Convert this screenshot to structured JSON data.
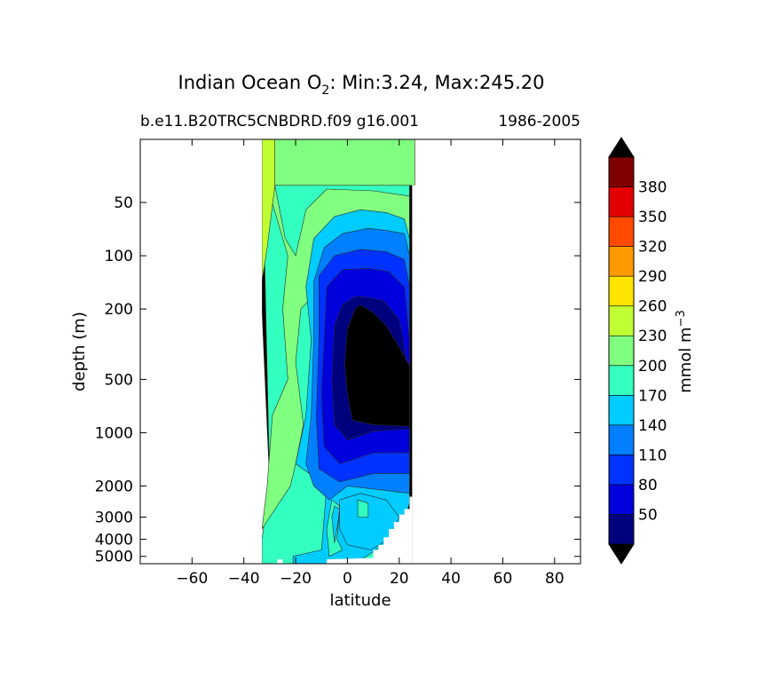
{
  "chart_data": {
    "type": "contour",
    "title_prefix": "Indian Ocean O",
    "title_subscript": "2",
    "title_suffix": ": Min:3.24, Max:245.20",
    "subtitle_left": "b.e11.B20TRC5CNBDRD.f09 g16.001",
    "subtitle_right": "1986-2005",
    "xlabel": "latitude",
    "ylabel": "depth (m)",
    "xlim": [
      -80,
      90
    ],
    "xticks": [
      -60,
      -40,
      -20,
      0,
      20,
      40,
      60,
      80
    ],
    "xtick_labels": [
      "−60",
      "−40",
      "−20",
      "0",
      "20",
      "40",
      "60",
      "80"
    ],
    "ylim": [
      5500,
      22
    ],
    "y_scale": "log",
    "yticks": [
      50,
      100,
      200,
      500,
      1000,
      2000,
      3000,
      4000,
      5000
    ],
    "ytick_labels": [
      "50",
      "100",
      "200",
      "500",
      "1000",
      "2000",
      "3000",
      "4000",
      "5000"
    ],
    "min": 3.24,
    "max": 245.2,
    "colorbar": {
      "label_base": "mmol m",
      "label_sup": "−3",
      "levels": [
        20,
        50,
        80,
        110,
        140,
        170,
        200,
        230,
        260,
        290,
        320,
        350,
        380,
        410
      ],
      "tick_labels": [
        "50",
        "80",
        "110",
        "140",
        "170",
        "200",
        "230",
        "260",
        "290",
        "320",
        "350",
        "380"
      ],
      "colors": [
        "#00007f",
        "#0000dd",
        "#0033ff",
        "#0080ff",
        "#00ccff",
        "#33ffc0",
        "#80ff80",
        "#c0ff33",
        "#ffe500",
        "#ff9900",
        "#ff4a00",
        "#e30000",
        "#800000"
      ],
      "extend_low_color": "#000000",
      "extend_high_color": "#000000"
    },
    "bands": [
      {
        "band": "extend_low",
        "polygon": [
          [
            -33,
            5500
          ],
          [
            -33,
            4000
          ],
          [
            -30,
            2000
          ],
          [
            -33,
            200
          ],
          [
            -33,
            22
          ],
          [
            25,
            22
          ],
          [
            25,
            5500
          ]
        ]
      },
      {
        "band": "170-200",
        "polygon": [
          [
            -33,
            5500
          ],
          [
            -33,
            4000
          ],
          [
            -30,
            2000
          ],
          [
            -33,
            22
          ],
          [
            24,
            22
          ],
          [
            24,
            1800
          ],
          [
            20,
            4800
          ],
          [
            8,
            5300
          ],
          [
            0,
            5500
          ]
        ]
      },
      {
        "band": "200-230",
        "polygon": [
          [
            -33,
            22
          ],
          [
            26,
            22
          ],
          [
            26,
            40
          ],
          [
            -33,
            40
          ]
        ]
      },
      {
        "band": "200-230",
        "polygon": [
          [
            -33,
            3500
          ],
          [
            -31,
            2000
          ],
          [
            -29,
            800
          ],
          [
            -23,
            500
          ],
          [
            -25,
            200
          ],
          [
            -23,
            100
          ],
          [
            -31,
            40
          ],
          [
            -33,
            22
          ],
          [
            -30,
            22
          ],
          [
            -28,
            40
          ],
          [
            -24,
            80
          ],
          [
            -20,
            100
          ],
          [
            -16,
            55
          ],
          [
            -8,
            42
          ],
          [
            10,
            43
          ],
          [
            24,
            46
          ],
          [
            24,
            100
          ],
          [
            -4,
            120
          ],
          [
            -18,
            200
          ],
          [
            -20,
            400
          ],
          [
            -17,
            900
          ],
          [
            -20,
            1500
          ],
          [
            -22,
            2000
          ],
          [
            -30,
            3000
          ]
        ]
      },
      {
        "band": "230-260",
        "polygon": [
          [
            -33,
            22
          ],
          [
            -28,
            22
          ],
          [
            -28,
            40
          ],
          [
            -31,
            90
          ],
          [
            -33,
            140
          ]
        ]
      },
      {
        "band": "140-170",
        "polygon": [
          [
            -21,
            5500
          ],
          [
            -21,
            5000
          ],
          [
            -10,
            4600
          ],
          [
            -9,
            3000
          ],
          [
            -8,
            2000
          ],
          [
            -20,
            1500
          ],
          [
            -16,
            800
          ],
          [
            -14,
            300
          ],
          [
            -16,
            150
          ],
          [
            -13,
            80
          ],
          [
            -5,
            60
          ],
          [
            5,
            55
          ],
          [
            15,
            57
          ],
          [
            22,
            62
          ],
          [
            24,
            80
          ],
          [
            24,
            2500
          ],
          [
            20,
            4000
          ],
          [
            12,
            4500
          ],
          [
            3,
            5500
          ]
        ]
      },
      {
        "band": "110-140",
        "polygon": [
          [
            -7,
            2400
          ],
          [
            -13,
            2000
          ],
          [
            -16,
            1500
          ],
          [
            -14,
            800
          ],
          [
            -13,
            300
          ],
          [
            -13,
            140
          ],
          [
            -9,
            90
          ],
          [
            -2,
            75
          ],
          [
            8,
            70
          ],
          [
            15,
            72
          ],
          [
            22,
            75
          ],
          [
            24,
            100
          ],
          [
            24,
            2200
          ],
          [
            0,
            2000
          ]
        ]
      },
      {
        "band": "80-110",
        "polygon": [
          [
            -3,
            1900
          ],
          [
            -11,
            1600
          ],
          [
            -12,
            800
          ],
          [
            -11,
            300
          ],
          [
            -11,
            130
          ],
          [
            -5,
            100
          ],
          [
            5,
            92
          ],
          [
            15,
            95
          ],
          [
            22,
            105
          ],
          [
            24,
            150
          ],
          [
            24,
            1700
          ],
          [
            10,
            1700
          ]
        ]
      },
      {
        "band": "50-80",
        "polygon": [
          [
            -3,
            1500
          ],
          [
            -9,
            1200
          ],
          [
            -10,
            600
          ],
          [
            -9,
            300
          ],
          [
            -8,
            150
          ],
          [
            -2,
            120
          ],
          [
            8,
            118
          ],
          [
            16,
            123
          ],
          [
            22,
            150
          ],
          [
            24,
            300
          ],
          [
            24,
            1300
          ],
          [
            10,
            1300
          ]
        ]
      },
      {
        "band": "20-50",
        "polygon": [
          [
            0,
            1100
          ],
          [
            -5,
            900
          ],
          [
            -6,
            500
          ],
          [
            -5,
            250
          ],
          [
            -2,
            190
          ],
          [
            3,
            170
          ],
          [
            8,
            172
          ],
          [
            14,
            180
          ],
          [
            20,
            230
          ],
          [
            22,
            330
          ],
          [
            24,
            500
          ],
          [
            24,
            950
          ],
          [
            10,
            980
          ]
        ]
      },
      {
        "band": "extend_low",
        "polygon": [
          [
            2,
            850
          ],
          [
            0,
            600
          ],
          [
            -1,
            400
          ],
          [
            0,
            260
          ],
          [
            3,
            200
          ],
          [
            5,
            190
          ],
          [
            10,
            210
          ],
          [
            15,
            250
          ],
          [
            20,
            330
          ],
          [
            24,
            420
          ],
          [
            24,
            920
          ],
          [
            10,
            900
          ]
        ]
      },
      {
        "band": "170-200",
        "polygon": [
          [
            -7,
            5000
          ],
          [
            -8,
            3500
          ],
          [
            -6,
            2400
          ],
          [
            -3,
            2600
          ],
          [
            -4,
            4000
          ],
          [
            -2,
            4600
          ]
        ]
      },
      {
        "band": "140-170",
        "polygon": [
          [
            -5,
            4200
          ],
          [
            -6,
            3000
          ],
          [
            -5,
            2600
          ],
          [
            -3,
            2700
          ],
          [
            -4,
            3500
          ]
        ]
      },
      {
        "band": "140-170",
        "polygon": [
          [
            -3,
            3500
          ],
          [
            -3,
            2400
          ],
          [
            5,
            2200
          ],
          [
            15,
            2400
          ],
          [
            20,
            3000
          ],
          [
            16,
            4000
          ],
          [
            9,
            4600
          ],
          [
            0,
            4300
          ]
        ]
      },
      {
        "band": "170-200",
        "polygon": [
          [
            4,
            3000
          ],
          [
            4,
            2400
          ],
          [
            8,
            2500
          ],
          [
            8,
            3000
          ]
        ]
      }
    ],
    "seafloor_mask": [
      [
        -35,
        5500
      ],
      [
        -35,
        5200
      ],
      [
        -33,
        5200
      ],
      [
        -33,
        5500
      ],
      [
        -27,
        5500
      ],
      [
        -27,
        5200
      ],
      [
        -25,
        5200
      ],
      [
        -25,
        5500
      ],
      [
        -8,
        5500
      ],
      [
        -8,
        5200
      ],
      [
        10,
        5100
      ],
      [
        10,
        4600
      ],
      [
        12,
        4600
      ],
      [
        12,
        4300
      ],
      [
        14,
        4300
      ],
      [
        14,
        3900
      ],
      [
        16,
        3900
      ],
      [
        16,
        3500
      ],
      [
        18,
        3500
      ],
      [
        18,
        3200
      ],
      [
        20,
        3200
      ],
      [
        20,
        2900
      ],
      [
        22,
        2900
      ],
      [
        22,
        2700
      ],
      [
        24,
        2700
      ],
      [
        24,
        2300
      ],
      [
        25,
        2300
      ],
      [
        25,
        5500
      ]
    ],
    "land_mask": [
      [
        -80,
        22
      ],
      [
        -33,
        22
      ],
      [
        -33,
        5500
      ],
      [
        -80,
        5500
      ]
    ],
    "land_mask_right": [
      [
        25,
        22
      ],
      [
        27,
        22
      ],
      [
        27,
        40
      ],
      [
        25,
        40
      ],
      [
        25,
        5500
      ],
      [
        90,
        5500
      ],
      [
        90,
        22
      ]
    ]
  }
}
